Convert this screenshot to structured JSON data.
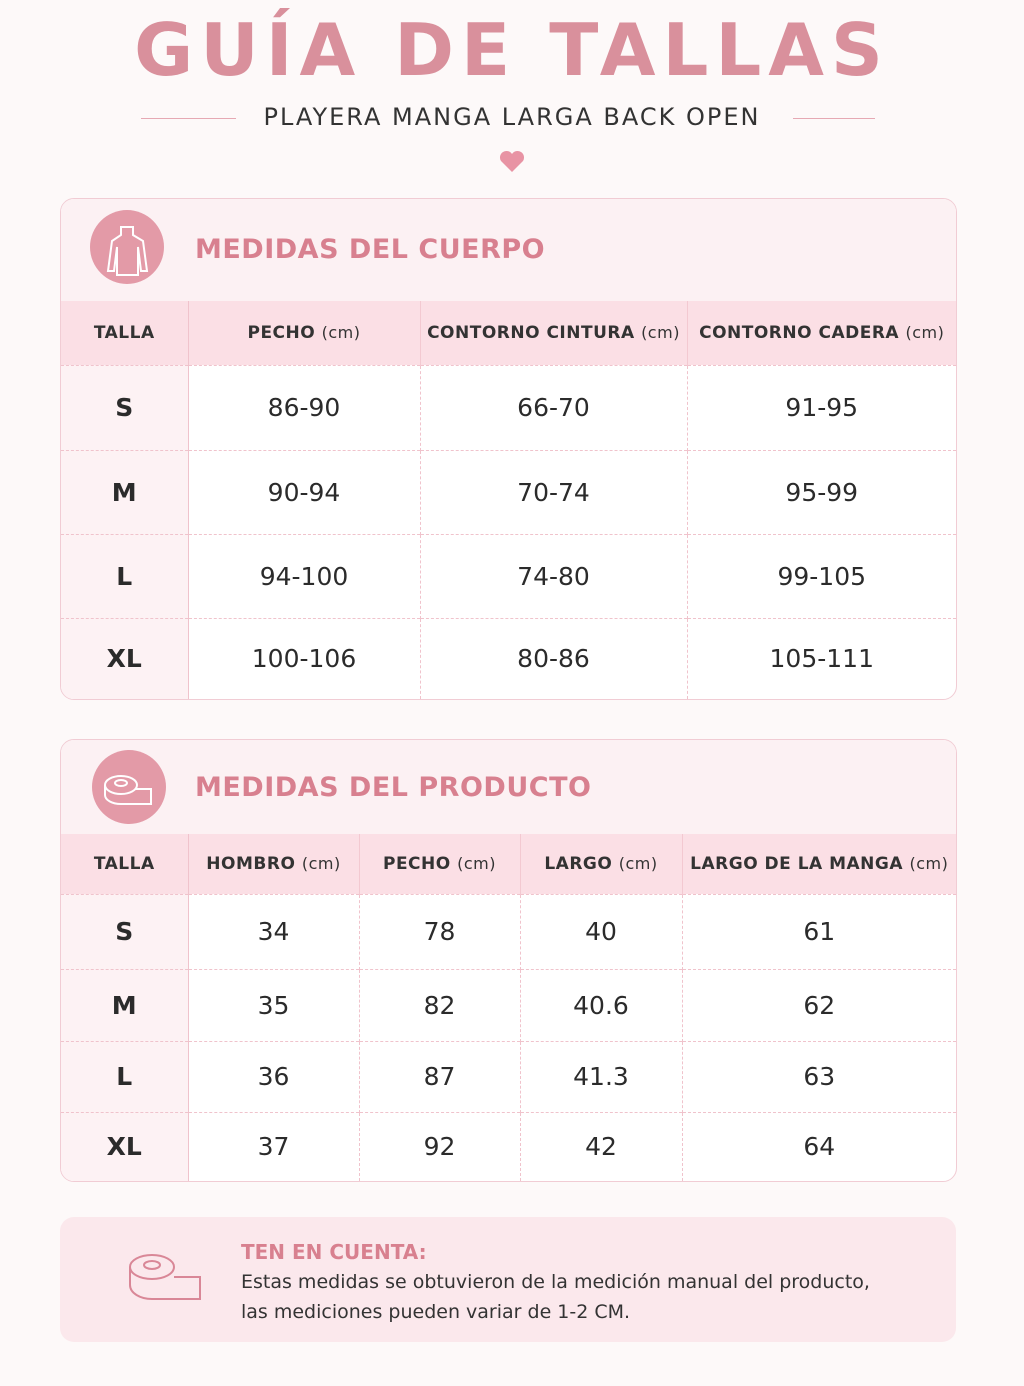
{
  "header": {
    "title": "GUÍA DE TALLAS",
    "subtitle": "PLAYERA MANGA LARGA BACK OPEN"
  },
  "body_measurements": {
    "title": "MEDIDAS DEL CUERPO",
    "headers": [
      {
        "label": "TALLA"
      },
      {
        "label": "PECHO",
        "unit": "(cm)"
      },
      {
        "label": "CONTORNO CINTURA",
        "unit": "(cm)"
      },
      {
        "label": "CONTORNO CADERA",
        "unit": "(cm)"
      }
    ],
    "rows": [
      [
        "S",
        "86-90",
        "66-70",
        "91-95"
      ],
      [
        "M",
        "90-94",
        "70-74",
        "95-99"
      ],
      [
        "L",
        "94-100",
        "74-80",
        "99-105"
      ],
      [
        "XL",
        "100-106",
        "80-86",
        "105-111"
      ]
    ]
  },
  "product_measurements": {
    "title": "MEDIDAS DEL PRODUCTO",
    "headers": [
      {
        "label": "TALLA"
      },
      {
        "label": "HOMBRO",
        "unit": "(cm)"
      },
      {
        "label": "PECHO",
        "unit": "(cm)"
      },
      {
        "label": "LARGO",
        "unit": "(cm)"
      },
      {
        "label": "LARGO DE LA MANGA",
        "unit": "(cm)"
      }
    ],
    "rows": [
      [
        "S",
        "34",
        "78",
        "40",
        "61"
      ],
      [
        "M",
        "35",
        "82",
        "40.6",
        "62"
      ],
      [
        "L",
        "36",
        "87",
        "41.3",
        "63"
      ],
      [
        "XL",
        "37",
        "92",
        "42",
        "64"
      ]
    ]
  },
  "note": {
    "title": "TEN EN CUENTA:",
    "lines": [
      "Estas medidas se obtuvieron de la medición manual del producto,",
      "las mediciones pueden variar de 1-2 CM."
    ]
  }
}
